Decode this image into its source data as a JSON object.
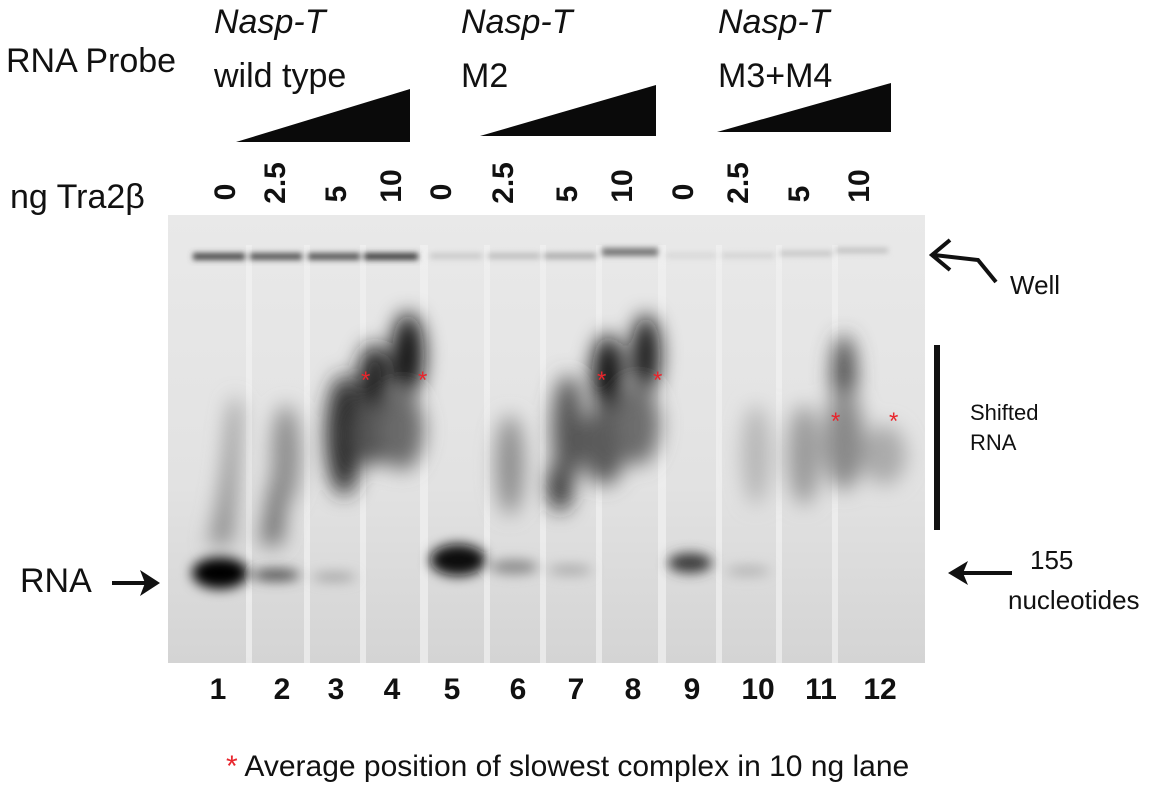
{
  "header": {
    "row_label": "RNA Probe",
    "conc_label": "ng Tra2β"
  },
  "groups": [
    {
      "gene": "Nasp-T",
      "variant": "wild type"
    },
    {
      "gene": "Nasp-T",
      "variant": "M2"
    },
    {
      "gene": "Nasp-T",
      "variant": "M3+M4"
    }
  ],
  "concentrations": [
    "0",
    "2.5",
    "5",
    "10",
    "0",
    "2.5",
    "5",
    "10",
    "0",
    "2.5",
    "5",
    "10"
  ],
  "lanes": [
    "1",
    "2",
    "3",
    "4",
    "5",
    "6",
    "7",
    "8",
    "9",
    "10",
    "11",
    "12"
  ],
  "labels": {
    "rna": "RNA",
    "well": "Well",
    "shifted_line1": "Shifted",
    "shifted_line2": "RNA",
    "nt_line1": "155",
    "nt_line2": "nucleotides"
  },
  "legend": {
    "marker": "*",
    "text": "Average position of slowest complex in 10 ng lane"
  },
  "colors": {
    "gel_background": "#e6e6e6",
    "band": "#0a0a0a",
    "asterisk": "#e8262d"
  }
}
